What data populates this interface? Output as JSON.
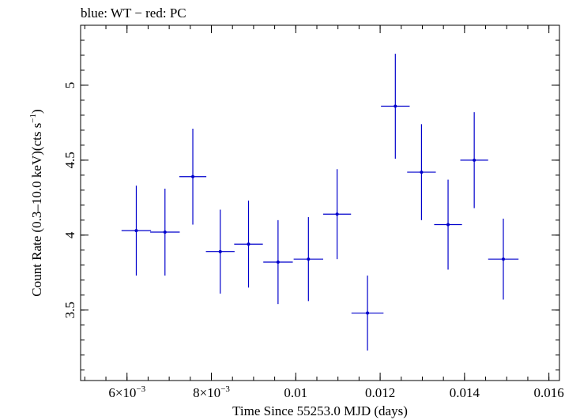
{
  "chart_data": {
    "type": "scatter",
    "title": "blue: WT − red: PC",
    "xlabel": "Time Since 55253.0 MJD (days)",
    "ylabel_main": "Count Rate (0.3–10.0 keV)(cts s",
    "ylabel_sup": "−1",
    "ylabel_end": ")",
    "xlim": [
      0.0049,
      0.01625
    ],
    "ylim": [
      3.03,
      5.4
    ],
    "x_ticks": [
      {
        "value": 0.006,
        "label": "6×10",
        "sup": "−3"
      },
      {
        "value": 0.008,
        "label": "8×10",
        "sup": "−3"
      },
      {
        "value": 0.01,
        "label": "0.01",
        "sup": ""
      },
      {
        "value": 0.012,
        "label": "0.012",
        "sup": ""
      },
      {
        "value": 0.014,
        "label": "0.014",
        "sup": ""
      },
      {
        "value": 0.016,
        "label": "0.016",
        "sup": ""
      }
    ],
    "x_minor_step": 0.0005,
    "y_ticks": [
      {
        "value": 3.5,
        "label": "3.5"
      },
      {
        "value": 4.0,
        "label": "4"
      },
      {
        "value": 4.5,
        "label": "4.5"
      },
      {
        "value": 5.0,
        "label": "5"
      }
    ],
    "y_minor_step": 0.1,
    "series": [
      {
        "color": "#0000cc",
        "points": [
          {
            "x": 0.00622,
            "xerr": 0.00035,
            "y": 4.03,
            "yerr": 0.3
          },
          {
            "x": 0.0069,
            "xerr": 0.00035,
            "y": 4.02,
            "yerr": 0.29
          },
          {
            "x": 0.00756,
            "xerr": 0.00032,
            "y": 4.39,
            "yerr": 0.32
          },
          {
            "x": 0.00821,
            "xerr": 0.00034,
            "y": 3.89,
            "yerr": 0.28
          },
          {
            "x": 0.00888,
            "xerr": 0.00034,
            "y": 3.94,
            "yerr": 0.29
          },
          {
            "x": 0.00958,
            "xerr": 0.00035,
            "y": 3.82,
            "yerr": 0.28
          },
          {
            "x": 0.0103,
            "xerr": 0.00035,
            "y": 3.84,
            "yerr": 0.28
          },
          {
            "x": 0.01098,
            "xerr": 0.00033,
            "y": 4.14,
            "yerr": 0.3
          },
          {
            "x": 0.0117,
            "xerr": 0.00038,
            "y": 3.48,
            "yerr": 0.25
          },
          {
            "x": 0.01236,
            "xerr": 0.00034,
            "y": 4.86,
            "yerr": 0.35
          },
          {
            "x": 0.01298,
            "xerr": 0.00034,
            "y": 4.42,
            "yerr": 0.32
          },
          {
            "x": 0.01361,
            "xerr": 0.00033,
            "y": 4.07,
            "yerr": 0.3
          },
          {
            "x": 0.01423,
            "xerr": 0.00033,
            "y": 4.5,
            "yerr": 0.32
          },
          {
            "x": 0.01492,
            "xerr": 0.00036,
            "y": 3.84,
            "yerr": 0.27
          }
        ]
      }
    ]
  }
}
